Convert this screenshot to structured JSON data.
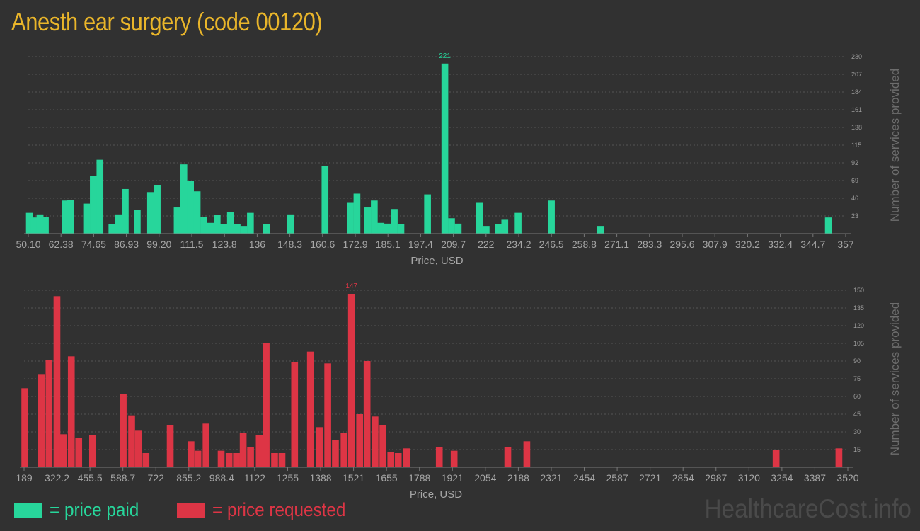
{
  "page": {
    "title": "Anesth ear surgery (code 00120)",
    "colors": {
      "background": "#313131",
      "title": "#e9b52a",
      "paid": "#27d69b",
      "requested": "#dd3545"
    },
    "legend": [
      {
        "label": "= price paid",
        "color": "#27d69b"
      },
      {
        "label": "= price requested",
        "color": "#dd3545"
      }
    ],
    "watermark": "HealthcareCost.info"
  },
  "chart_data": [
    {
      "type": "bar",
      "series": [
        {
          "name": "price paid",
          "color": "#27d69b"
        }
      ],
      "xlabel": "Price, USD",
      "ylabel": "Number of services provided",
      "xlim": [
        50.1,
        357
      ],
      "ylim": [
        0,
        230
      ],
      "x_ticks": [
        "50.10",
        "62.38",
        "74.65",
        "86.93",
        "99.20",
        "111.5",
        "123.8",
        "136",
        "148.3",
        "160.6",
        "172.9",
        "185.1",
        "197.4",
        "209.7",
        "222",
        "234.2",
        "246.5",
        "258.8",
        "271.1",
        "283.3",
        "295.6",
        "307.9",
        "320.2",
        "332.4",
        "344.7",
        "357"
      ],
      "y_ticks": [
        23,
        46,
        69,
        92,
        115,
        138,
        161,
        184,
        207,
        230
      ],
      "peak_label": "221",
      "bars": [
        [
          50.5,
          27
        ],
        [
          52.3,
          21
        ],
        [
          54.5,
          25
        ],
        [
          56.5,
          22
        ],
        [
          64.0,
          43
        ],
        [
          66.0,
          44
        ],
        [
          72.0,
          39
        ],
        [
          74.5,
          75
        ],
        [
          77.0,
          96
        ],
        [
          81.5,
          12
        ],
        [
          84.0,
          25
        ],
        [
          86.5,
          58
        ],
        [
          91.0,
          31
        ],
        [
          96.0,
          54
        ],
        [
          98.5,
          63
        ],
        [
          106.0,
          34
        ],
        [
          108.5,
          90
        ],
        [
          111.0,
          69
        ],
        [
          113.5,
          55
        ],
        [
          116.0,
          22
        ],
        [
          118.5,
          14
        ],
        [
          121.0,
          24
        ],
        [
          123.5,
          12
        ],
        [
          126.0,
          28
        ],
        [
          128.5,
          12
        ],
        [
          131.0,
          10
        ],
        [
          133.5,
          27
        ],
        [
          139.5,
          12
        ],
        [
          148.5,
          25
        ],
        [
          161.5,
          88
        ],
        [
          171.0,
          40
        ],
        [
          173.5,
          52
        ],
        [
          177.5,
          34
        ],
        [
          180.0,
          43
        ],
        [
          182.5,
          14
        ],
        [
          185.0,
          13
        ],
        [
          187.5,
          32
        ],
        [
          190.0,
          12
        ],
        [
          200.0,
          51
        ],
        [
          206.5,
          221
        ],
        [
          209.0,
          20
        ],
        [
          211.5,
          13
        ],
        [
          219.5,
          40
        ],
        [
          222.0,
          10
        ],
        [
          226.5,
          12
        ],
        [
          229.0,
          18
        ],
        [
          234.0,
          27
        ],
        [
          246.5,
          43
        ],
        [
          265.0,
          10
        ],
        [
          350.5,
          21
        ]
      ]
    },
    {
      "type": "bar",
      "series": [
        {
          "name": "price requested",
          "color": "#dd3545"
        }
      ],
      "xlabel": "Price, USD",
      "ylabel": "Number of services provided",
      "xlim": [
        189,
        3520
      ],
      "ylim": [
        0,
        150
      ],
      "x_ticks": [
        "189",
        "322.2",
        "455.5",
        "588.7",
        "722",
        "855.2",
        "988.4",
        "1122",
        "1255",
        "1388",
        "1521",
        "1655",
        "1788",
        "1921",
        "2054",
        "2188",
        "2321",
        "2454",
        "2587",
        "2721",
        "2854",
        "2987",
        "3120",
        "3254",
        "3387",
        "3520"
      ],
      "y_ticks": [
        15,
        30,
        45,
        60,
        75,
        90,
        105,
        120,
        135,
        150
      ],
      "peak_label": "147",
      "bars": [
        [
          192,
          67
        ],
        [
          259,
          79
        ],
        [
          290,
          91
        ],
        [
          322,
          145
        ],
        [
          348,
          28
        ],
        [
          380,
          94
        ],
        [
          410,
          25
        ],
        [
          466,
          27
        ],
        [
          590,
          62
        ],
        [
          624,
          44
        ],
        [
          652,
          31
        ],
        [
          682,
          12
        ],
        [
          780,
          36
        ],
        [
          864,
          22
        ],
        [
          892,
          14
        ],
        [
          925,
          37
        ],
        [
          986,
          14
        ],
        [
          1018,
          12
        ],
        [
          1048,
          12
        ],
        [
          1075,
          29
        ],
        [
          1105,
          17
        ],
        [
          1140,
          27
        ],
        [
          1168,
          105
        ],
        [
          1202,
          12
        ],
        [
          1232,
          12
        ],
        [
          1283,
          89
        ],
        [
          1347,
          98
        ],
        [
          1383,
          34
        ],
        [
          1417,
          88
        ],
        [
          1448,
          23
        ],
        [
          1483,
          29
        ],
        [
          1513,
          147
        ],
        [
          1546,
          45
        ],
        [
          1576,
          90
        ],
        [
          1608,
          43
        ],
        [
          1640,
          36
        ],
        [
          1672,
          13
        ],
        [
          1702,
          12
        ],
        [
          1735,
          16
        ],
        [
          1868,
          17
        ],
        [
          1928,
          14
        ],
        [
          2145,
          17
        ],
        [
          2222,
          22
        ],
        [
          3230,
          15
        ],
        [
          3484,
          16
        ]
      ]
    }
  ]
}
